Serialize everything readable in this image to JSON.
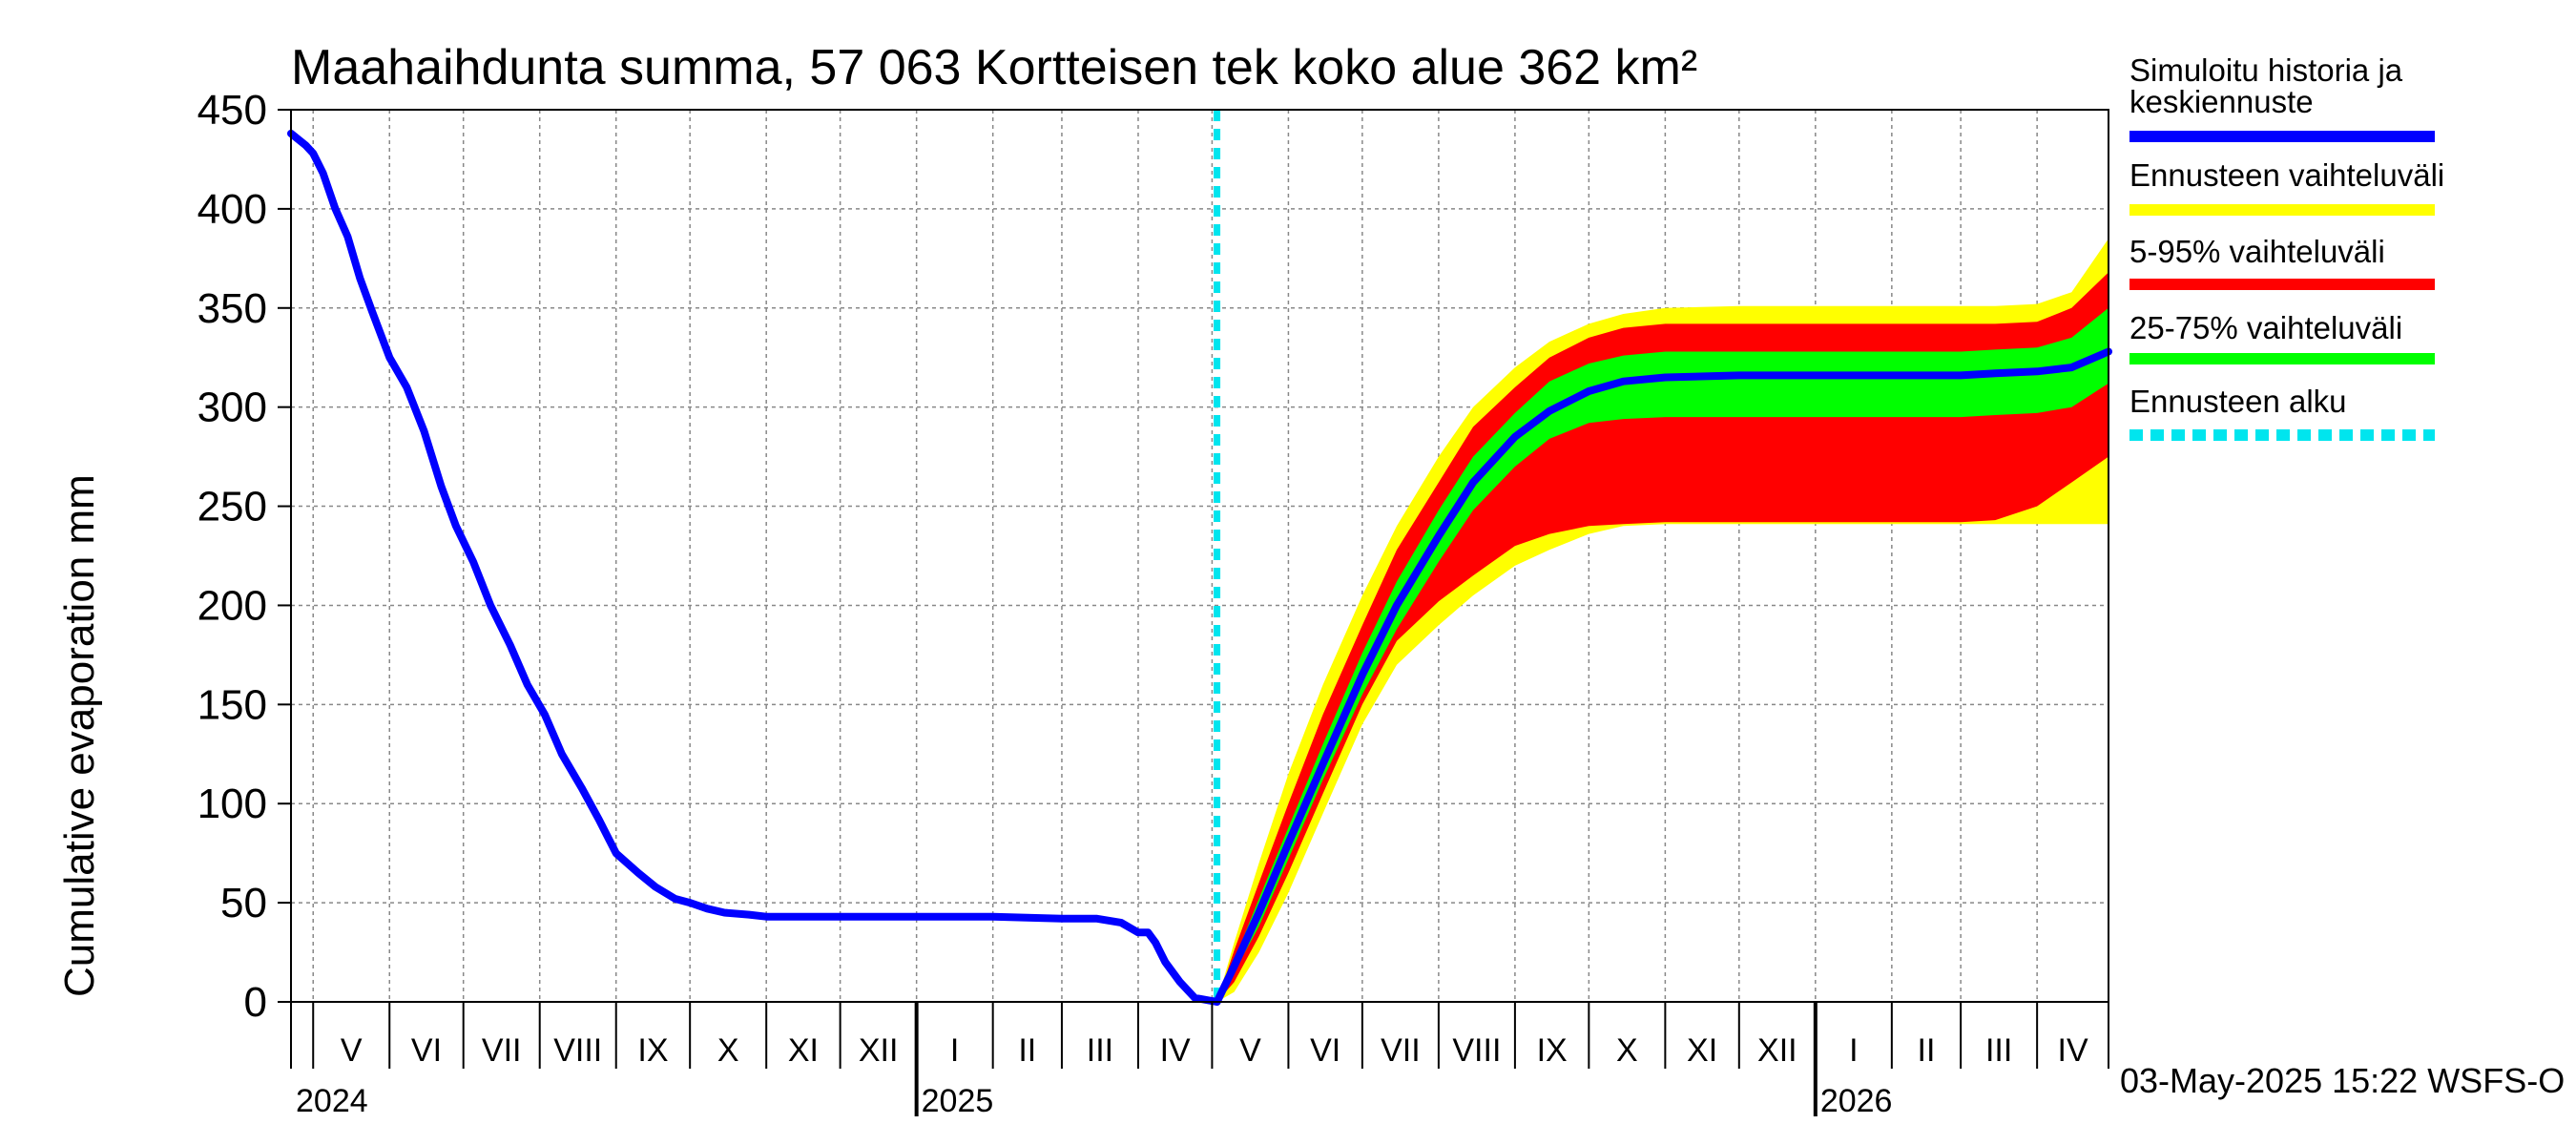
{
  "chart_data": {
    "type": "area",
    "title": "Maahaihdunta summa, 57 063 Kortteisen tek koko alue 362 km²",
    "ylabel": "Cumulative evaporation   mm",
    "ylim": [
      0,
      450
    ],
    "yticks": [
      0,
      50,
      100,
      150,
      200,
      250,
      300,
      350,
      400,
      450
    ],
    "xlim": [
      "2024-04-22",
      "2026-04-30"
    ],
    "months": [
      {
        "label": "V",
        "date": "2024-05-01"
      },
      {
        "label": "VI",
        "date": "2024-06-01"
      },
      {
        "label": "VII",
        "date": "2024-07-01"
      },
      {
        "label": "VIII",
        "date": "2024-08-01"
      },
      {
        "label": "IX",
        "date": "2024-09-01"
      },
      {
        "label": "X",
        "date": "2024-10-01"
      },
      {
        "label": "XI",
        "date": "2024-11-01"
      },
      {
        "label": "XII",
        "date": "2024-12-01"
      },
      {
        "label": "I",
        "date": "2025-01-01"
      },
      {
        "label": "II",
        "date": "2025-02-01"
      },
      {
        "label": "III",
        "date": "2025-03-01"
      },
      {
        "label": "IV",
        "date": "2025-04-01"
      },
      {
        "label": "V",
        "date": "2025-05-01"
      },
      {
        "label": "VI",
        "date": "2025-06-01"
      },
      {
        "label": "VII",
        "date": "2025-07-01"
      },
      {
        "label": "VIII",
        "date": "2025-08-01"
      },
      {
        "label": "IX",
        "date": "2025-09-01"
      },
      {
        "label": "X",
        "date": "2025-10-01"
      },
      {
        "label": "XI",
        "date": "2025-11-01"
      },
      {
        "label": "XII",
        "date": "2025-12-01"
      },
      {
        "label": "I",
        "date": "2026-01-01"
      },
      {
        "label": "II",
        "date": "2026-02-01"
      },
      {
        "label": "III",
        "date": "2026-03-01"
      },
      {
        "label": "IV",
        "date": "2026-04-01"
      }
    ],
    "years": [
      {
        "label": "2024",
        "date": "2024-04-22"
      },
      {
        "label": "2025",
        "date": "2025-01-01"
      },
      {
        "label": "2026",
        "date": "2026-01-01"
      }
    ],
    "forecast_start": "2025-05-03",
    "history": {
      "name": "Simuloitu historia ja keskiennuste",
      "color": "#0000ff",
      "x": [
        "2024-04-22",
        "2024-04-28",
        "2024-05-01",
        "2024-05-05",
        "2024-05-10",
        "2024-05-15",
        "2024-05-20",
        "2024-05-25",
        "2024-06-01",
        "2024-06-08",
        "2024-06-15",
        "2024-06-22",
        "2024-06-28",
        "2024-07-05",
        "2024-07-12",
        "2024-07-20",
        "2024-07-27",
        "2024-08-03",
        "2024-08-10",
        "2024-08-18",
        "2024-08-25",
        "2024-09-01",
        "2024-09-10",
        "2024-09-17",
        "2024-09-25",
        "2024-10-01",
        "2024-10-08",
        "2024-10-15",
        "2024-10-25",
        "2024-11-01",
        "2024-11-15",
        "2024-12-01",
        "2025-01-01",
        "2025-02-01",
        "2025-03-01",
        "2025-03-15",
        "2025-03-25",
        "2025-04-01",
        "2025-04-05",
        "2025-04-08",
        "2025-04-12",
        "2025-04-18",
        "2025-04-24",
        "2025-05-03"
      ],
      "y": [
        438,
        432,
        428,
        418,
        400,
        386,
        365,
        348,
        325,
        310,
        288,
        260,
        240,
        222,
        200,
        180,
        160,
        145,
        125,
        108,
        92,
        75,
        65,
        58,
        52,
        50,
        47,
        45,
        44,
        43,
        43,
        43,
        43,
        43,
        42,
        42,
        40,
        35,
        35,
        30,
        20,
        10,
        2,
        0
      ]
    },
    "median": {
      "x": [
        "2025-05-03",
        "2025-05-10",
        "2025-05-20",
        "2025-06-01",
        "2025-06-15",
        "2025-07-01",
        "2025-07-15",
        "2025-08-01",
        "2025-08-15",
        "2025-09-01",
        "2025-09-15",
        "2025-10-01",
        "2025-10-15",
        "2025-11-01",
        "2025-12-01",
        "2026-01-01",
        "2026-02-01",
        "2026-03-01",
        "2026-03-15",
        "2026-04-01",
        "2026-04-15",
        "2026-04-30"
      ],
      "y": [
        0,
        18,
        45,
        80,
        120,
        165,
        200,
        235,
        262,
        285,
        298,
        308,
        313,
        315,
        316,
        316,
        316,
        316,
        317,
        318,
        320,
        328
      ]
    },
    "bands": [
      {
        "name": "Ennusteen vaihteluväli",
        "color": "#ffff00",
        "x": [
          "2025-05-03",
          "2025-05-10",
          "2025-05-20",
          "2025-06-01",
          "2025-06-15",
          "2025-07-01",
          "2025-07-15",
          "2025-08-01",
          "2025-08-15",
          "2025-09-01",
          "2025-09-15",
          "2025-10-01",
          "2025-10-15",
          "2025-11-01",
          "2025-12-01",
          "2026-01-01",
          "2026-02-01",
          "2026-03-01",
          "2026-03-15",
          "2026-04-01",
          "2026-04-15",
          "2026-04-30"
        ],
        "upper": [
          0,
          30,
          70,
          115,
          160,
          205,
          240,
          275,
          300,
          320,
          333,
          342,
          347,
          350,
          351,
          351,
          351,
          351,
          351,
          352,
          358,
          385
        ],
        "lower": [
          0,
          5,
          25,
          55,
          95,
          140,
          170,
          190,
          205,
          220,
          228,
          236,
          240,
          241,
          241,
          241,
          241,
          241,
          241,
          241,
          241,
          241
        ]
      },
      {
        "name": "5-95% vaihteluväli",
        "color": "#ff0000",
        "x": [
          "2025-05-03",
          "2025-05-10",
          "2025-05-20",
          "2025-06-01",
          "2025-06-15",
          "2025-07-01",
          "2025-07-15",
          "2025-08-01",
          "2025-08-15",
          "2025-09-01",
          "2025-09-15",
          "2025-10-01",
          "2025-10-15",
          "2025-11-01",
          "2025-12-01",
          "2026-01-01",
          "2026-02-01",
          "2026-03-01",
          "2026-03-15",
          "2026-04-01",
          "2026-04-15",
          "2026-04-30"
        ],
        "upper": [
          0,
          26,
          60,
          100,
          145,
          190,
          228,
          262,
          290,
          310,
          325,
          335,
          340,
          342,
          342,
          342,
          342,
          342,
          342,
          343,
          350,
          368
        ],
        "lower": [
          0,
          10,
          33,
          65,
          105,
          150,
          182,
          202,
          215,
          230,
          236,
          240,
          241,
          242,
          242,
          242,
          242,
          242,
          243,
          250,
          262,
          275
        ]
      },
      {
        "name": "25-75% vaihteluväli",
        "color": "#00ff00",
        "x": [
          "2025-05-03",
          "2025-05-10",
          "2025-05-20",
          "2025-06-01",
          "2025-06-15",
          "2025-07-01",
          "2025-07-15",
          "2025-08-01",
          "2025-08-15",
          "2025-09-01",
          "2025-09-15",
          "2025-10-01",
          "2025-10-15",
          "2025-11-01",
          "2025-12-01",
          "2026-01-01",
          "2026-02-01",
          "2026-03-01",
          "2026-03-15",
          "2026-04-01",
          "2026-04-15",
          "2026-04-30"
        ],
        "upper": [
          0,
          21,
          52,
          88,
          130,
          176,
          212,
          248,
          275,
          297,
          313,
          322,
          326,
          328,
          328,
          328,
          328,
          328,
          329,
          330,
          335,
          350
        ],
        "lower": [
          0,
          15,
          38,
          72,
          112,
          155,
          188,
          222,
          248,
          270,
          284,
          292,
          294,
          295,
          295,
          295,
          295,
          295,
          296,
          297,
          300,
          312
        ]
      }
    ],
    "legend": [
      {
        "label": "Simuloitu historia ja\nkeskiennuste",
        "color": "#0000ff",
        "style": "solid"
      },
      {
        "label": "Ennusteen vaihteluväli",
        "color": "#ffff00",
        "style": "solid"
      },
      {
        "label": "5-95% vaihteluväli",
        "color": "#ff0000",
        "style": "solid"
      },
      {
        "label": "25-75% vaihteluväli",
        "color": "#00ff00",
        "style": "solid"
      },
      {
        "label": "Ennusteen alku",
        "color": "#00e5ee",
        "style": "dashed"
      }
    ],
    "legend_position": "right",
    "grid": true,
    "footer": "03-May-2025 15:22 WSFS-O"
  }
}
